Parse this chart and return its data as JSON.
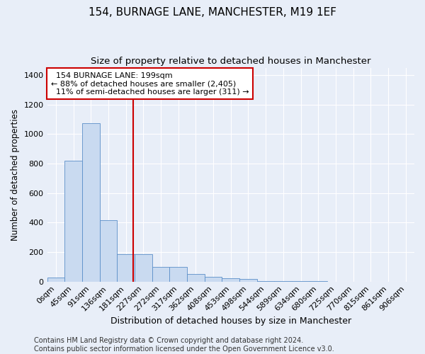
{
  "title1": "154, BURNAGE LANE, MANCHESTER, M19 1EF",
  "title2": "Size of property relative to detached houses in Manchester",
  "xlabel": "Distribution of detached houses by size in Manchester",
  "ylabel": "Number of detached properties",
  "bar_labels": [
    "0sqm",
    "45sqm",
    "91sqm",
    "136sqm",
    "181sqm",
    "227sqm",
    "272sqm",
    "317sqm",
    "362sqm",
    "408sqm",
    "453sqm",
    "498sqm",
    "544sqm",
    "589sqm",
    "634sqm",
    "680sqm",
    "725sqm",
    "770sqm",
    "815sqm",
    "861sqm",
    "906sqm"
  ],
  "bar_values": [
    25,
    820,
    1075,
    415,
    185,
    185,
    100,
    100,
    50,
    30,
    20,
    15,
    5,
    2,
    1,
    1,
    0,
    0,
    0,
    0,
    0
  ],
  "bar_color": "#c9daf0",
  "bar_edge_color": "#5b8fc9",
  "vline_x": 4.42,
  "vline_color": "#cc0000",
  "annotation_text": "  154 BURNAGE LANE: 199sqm\n← 88% of detached houses are smaller (2,405)\n  11% of semi-detached houses are larger (311) →",
  "annotation_box_color": "#ffffff",
  "annotation_box_edge": "#cc0000",
  "ylim": [
    0,
    1450
  ],
  "yticks": [
    0,
    200,
    400,
    600,
    800,
    1000,
    1200,
    1400
  ],
  "background_color": "#e8eef8",
  "footer_text": "Contains HM Land Registry data © Crown copyright and database right 2024.\nContains public sector information licensed under the Open Government Licence v3.0.",
  "title1_fontsize": 11,
  "title2_fontsize": 9.5,
  "xlabel_fontsize": 9,
  "ylabel_fontsize": 8.5,
  "tick_fontsize": 8,
  "footer_fontsize": 7,
  "annot_fontsize": 8
}
